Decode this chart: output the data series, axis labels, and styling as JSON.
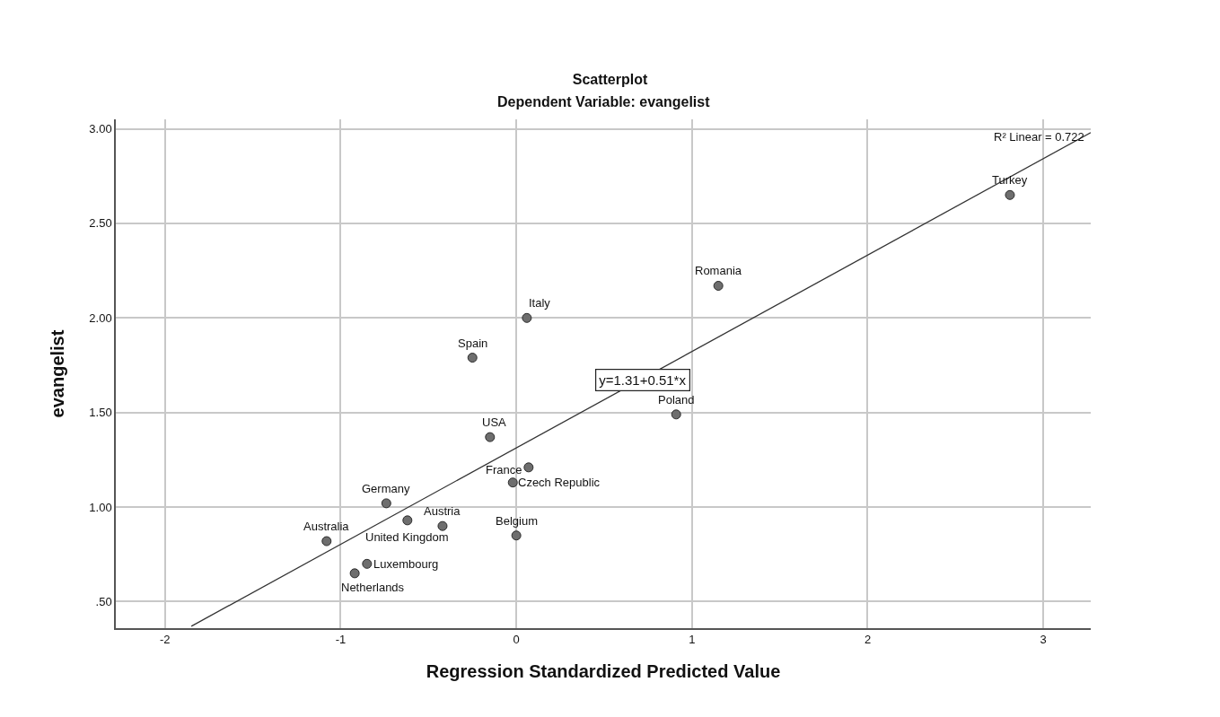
{
  "chart_data": {
    "type": "scatter",
    "title": "Scatterplot",
    "subtitle": "Dependent Variable: evangelist",
    "xlabel": "Regression Standardized Predicted Value",
    "ylabel": "evangelist",
    "series": [
      {
        "color": "#6e6e6e",
        "marker": "circle",
        "x": [
          2.81,
          1.15,
          0.06,
          -0.25,
          0.91,
          -0.15,
          0.07,
          -0.02,
          -0.74,
          -0.42,
          0.0,
          -1.08,
          -0.62,
          -0.85,
          -0.92
        ],
        "values": [
          2.65,
          2.17,
          2.0,
          1.79,
          1.49,
          1.37,
          1.21,
          1.13,
          1.02,
          0.9,
          0.85,
          0.82,
          0.93,
          0.7,
          0.65
        ]
      },
      {
        "type": "line",
        "color": "#333333",
        "line_style": "solid",
        "marker": "none",
        "x": [
          -1.85,
          3.27
        ],
        "values": [
          0.37,
          2.98
        ]
      }
    ],
    "annotations": [
      {
        "text": "Turkey",
        "x": 2.81,
        "y": 2.65
      },
      {
        "text": "Romania",
        "x": 1.15,
        "y": 2.17
      },
      {
        "text": "Italy",
        "x": 0.06,
        "y": 2.0
      },
      {
        "text": "Spain",
        "x": -0.25,
        "y": 1.79
      },
      {
        "text": "Poland",
        "x": 0.91,
        "y": 1.49
      },
      {
        "text": "USA",
        "x": -0.15,
        "y": 1.37
      },
      {
        "text": "France",
        "x": 0.07,
        "y": 1.21
      },
      {
        "text": "Czech Republic",
        "x": -0.02,
        "y": 1.13
      },
      {
        "text": "Germany",
        "x": -0.74,
        "y": 1.02
      },
      {
        "text": "Austria",
        "x": -0.42,
        "y": 0.9
      },
      {
        "text": "Belgium",
        "x": 0.0,
        "y": 0.85
      },
      {
        "text": "Australia",
        "x": -1.08,
        "y": 0.82
      },
      {
        "text": "United Kingdom",
        "x": -0.62,
        "y": 0.93
      },
      {
        "text": "Luxembourg",
        "x": -0.85,
        "y": 0.7
      },
      {
        "text": "Netherlands",
        "x": -0.92,
        "y": 0.65
      },
      {
        "text": "y=1.31+0.51*x",
        "x": 0.72,
        "y": 1.67
      },
      "R² Linear = 0.722"
    ],
    "xlim": [
      -2.28,
      3.27
    ],
    "xticks": [
      -2,
      -1,
      0,
      1,
      2,
      3
    ],
    "ylim": [
      0.36,
      3.05
    ],
    "yticks": [
      {
        "value": 0.5,
        "label": ".50"
      },
      {
        "value": 1.0,
        "label": "1.00"
      },
      {
        "value": 1.5,
        "label": "1.50"
      },
      {
        "value": 2.0,
        "label": "2.00"
      },
      {
        "value": 2.5,
        "label": "2.50"
      },
      {
        "value": 3.0,
        "label": "3.00"
      }
    ],
    "grid": true
  }
}
